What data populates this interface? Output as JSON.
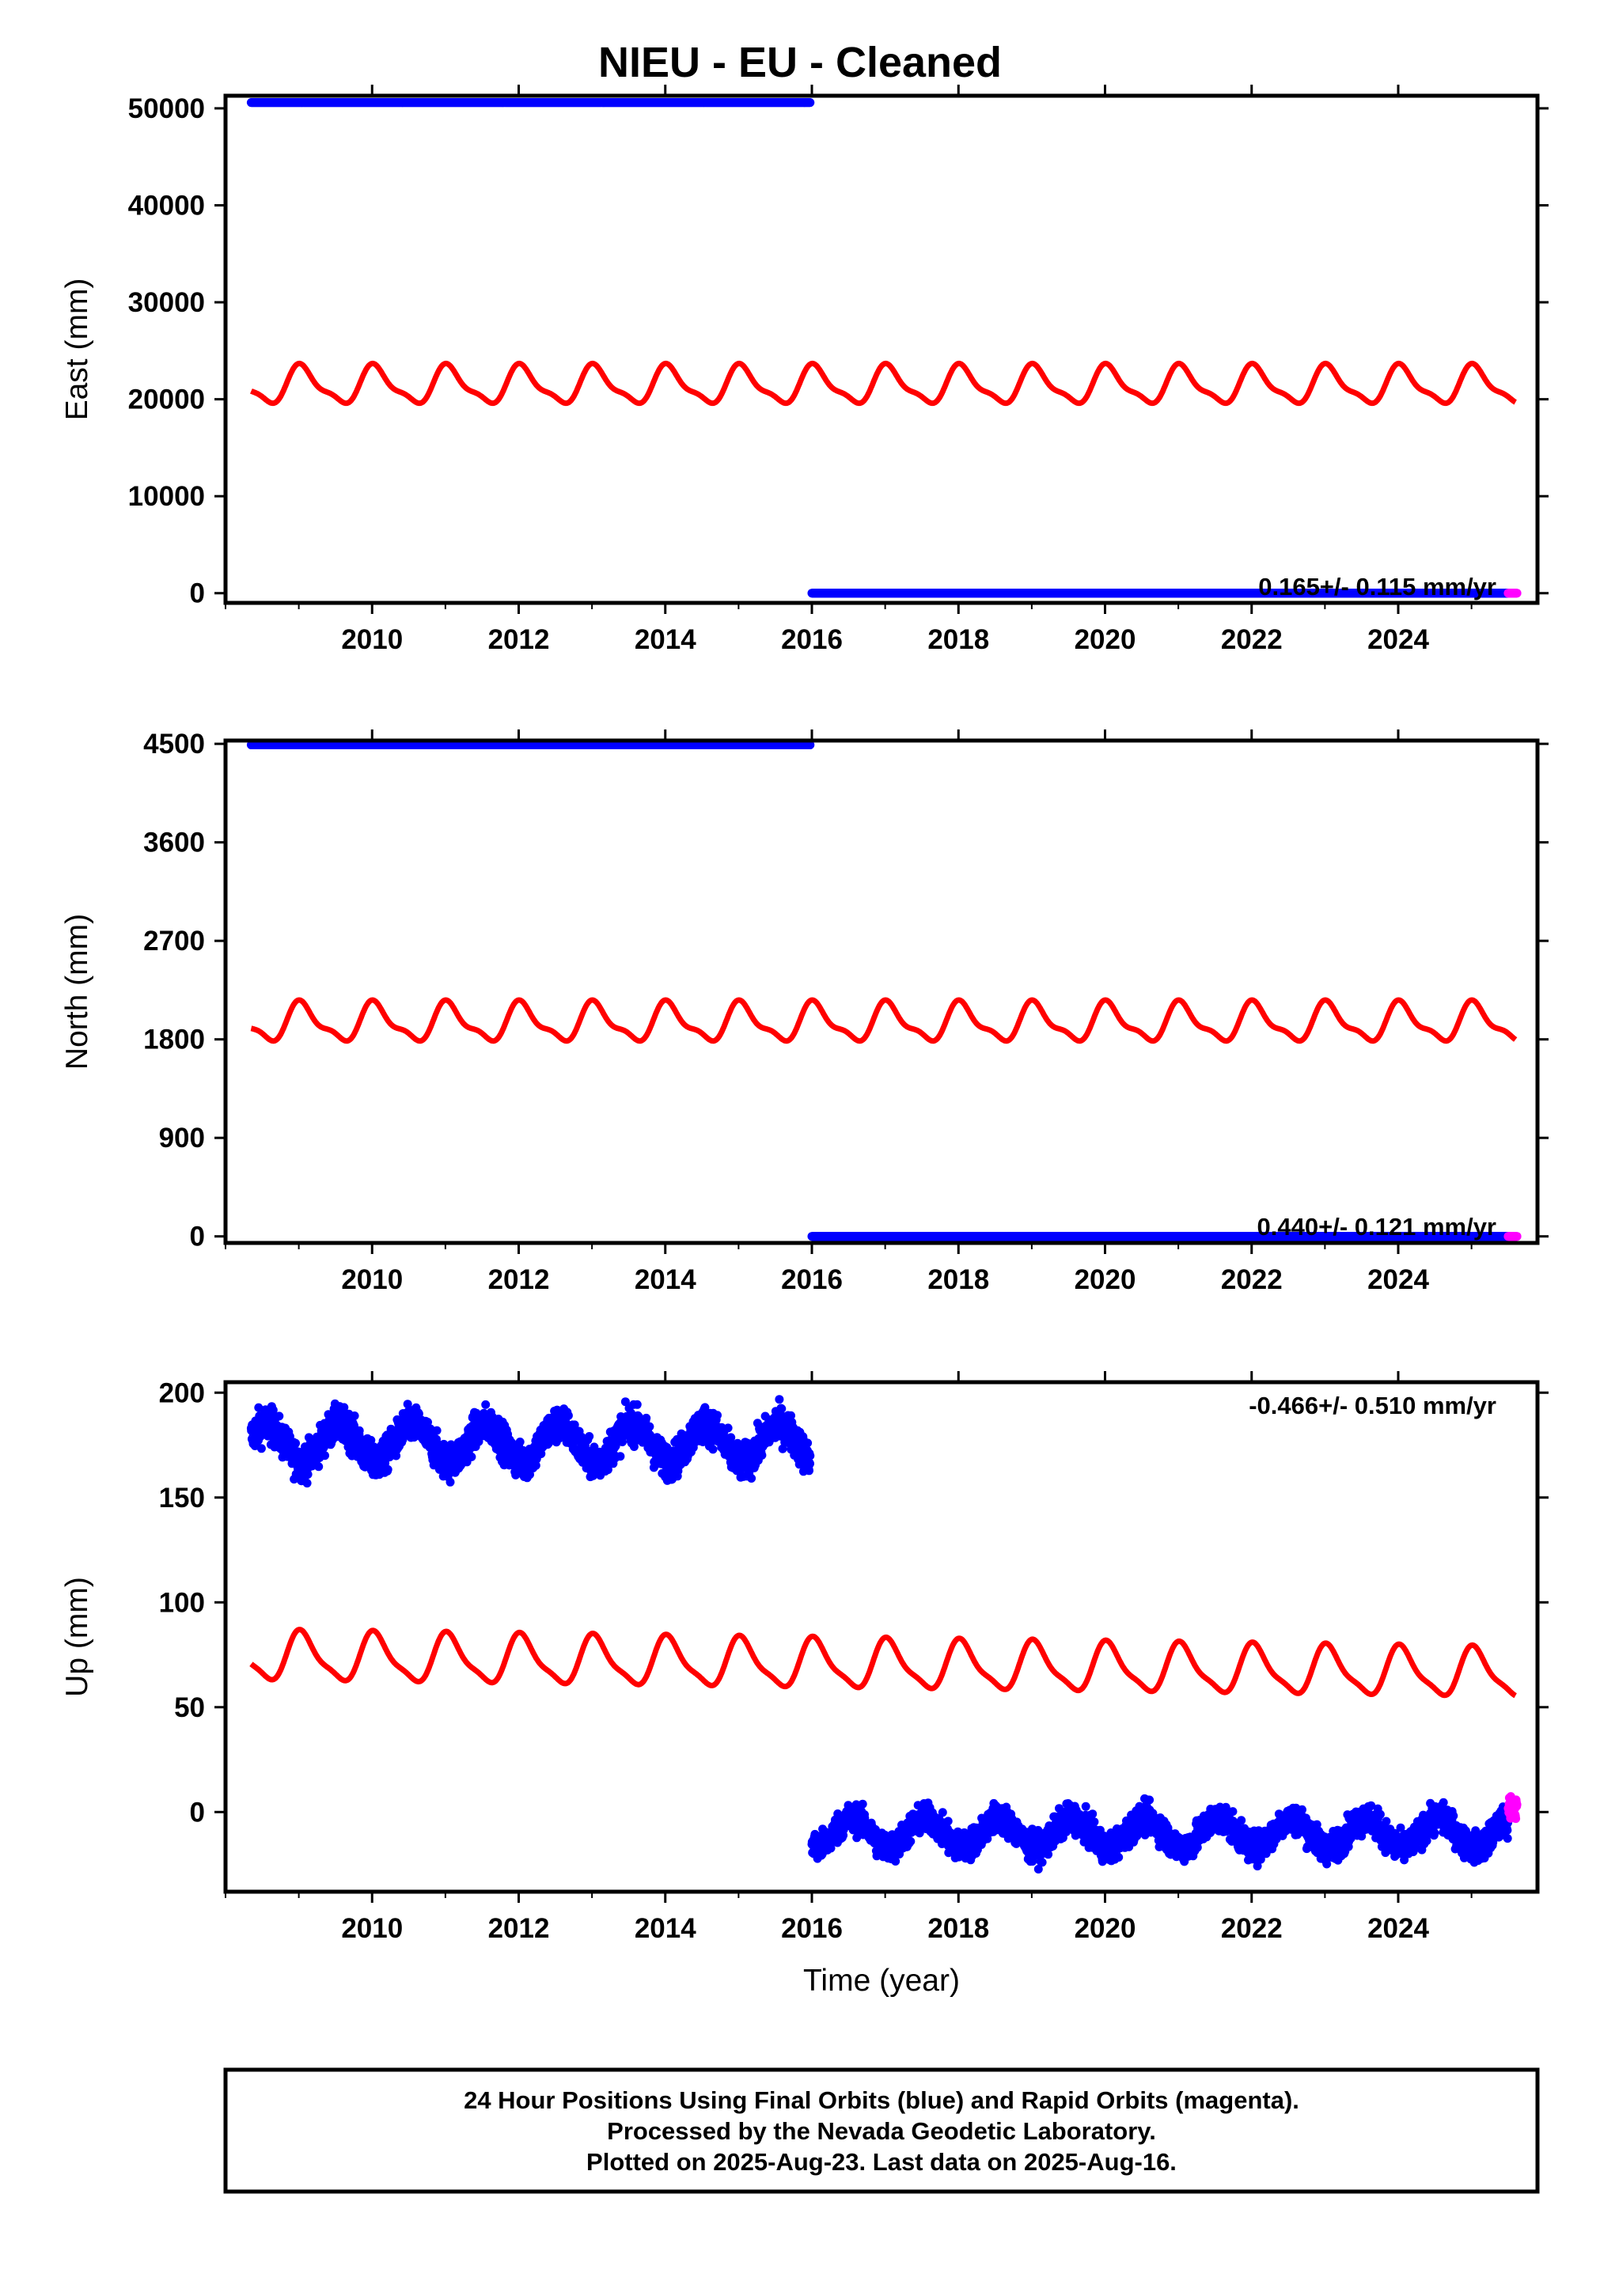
{
  "title": "NIEU  - EU - Cleaned",
  "colors": {
    "final_orbits": "#0000ff",
    "rapid_orbits": "#ff00ff",
    "model": "#ff0000",
    "frame": "#000000"
  },
  "footer": {
    "line1": "24 Hour Positions Using Final Orbits (blue) and Rapid Orbits (magenta).",
    "line2": "Processed by the Nevada Geodetic Laboratory.",
    "line3": "Plotted on 2025-Aug-23. Last data on 2025-Aug-16."
  },
  "chart_data": [
    {
      "type": "scatter",
      "panel": "east",
      "ylabel": "East (mm)",
      "xlabel": "",
      "rate_text": "0.165+/- 0.115 mm/yr",
      "xlim": [
        2008.0,
        2025.9
      ],
      "ylim": [
        -1000,
        51300
      ],
      "x_ticks": [
        2010,
        2012,
        2014,
        2016,
        2018,
        2020,
        2022,
        2024
      ],
      "y_ticks": [
        0,
        10000,
        20000,
        30000,
        40000,
        50000
      ],
      "grid": false,
      "series": [
        {
          "role": "final_orbits",
          "segments": [
            {
              "x_start": 2008.35,
              "x_end": 2015.98,
              "y": 50600,
              "noise": 0
            },
            {
              "x_start": 2016.0,
              "x_end": 2025.5,
              "y": 0,
              "noise": 0
            }
          ]
        },
        {
          "role": "rapid_orbits",
          "segments": [
            {
              "x_start": 2025.5,
              "x_end": 2025.62,
              "y": 0,
              "noise": 0
            }
          ]
        },
        {
          "role": "model",
          "x_start": 2008.35,
          "x_end": 2025.6,
          "model": {
            "base_y": 21400,
            "slope": 0,
            "annual_amp": 1800,
            "semi_amp": 600,
            "phase": 0.3
          }
        }
      ]
    },
    {
      "type": "scatter",
      "panel": "north",
      "ylabel": "North (mm)",
      "xlabel": "",
      "rate_text": "0.440+/- 0.121 mm/yr",
      "xlim": [
        2008.0,
        2025.9
      ],
      "ylim": [
        -60,
        4530
      ],
      "x_ticks": [
        2010,
        2012,
        2014,
        2016,
        2018,
        2020,
        2022,
        2024
      ],
      "y_ticks": [
        0,
        900,
        1800,
        2700,
        3600,
        4500
      ],
      "grid": false,
      "series": [
        {
          "role": "final_orbits",
          "segments": [
            {
              "x_start": 2008.35,
              "x_end": 2015.98,
              "y": 4490,
              "noise": 0
            },
            {
              "x_start": 2016.0,
              "x_end": 2025.5,
              "y": 0,
              "noise": 0
            }
          ]
        },
        {
          "role": "rapid_orbits",
          "segments": [
            {
              "x_start": 2025.5,
              "x_end": 2025.62,
              "y": 0,
              "noise": 0
            }
          ]
        },
        {
          "role": "model",
          "x_start": 2008.35,
          "x_end": 2025.6,
          "model": {
            "base_y": 1950,
            "slope": 0,
            "annual_amp": 160,
            "semi_amp": 60,
            "phase": 0.3
          }
        }
      ]
    },
    {
      "type": "scatter",
      "panel": "up",
      "ylabel": "Up (mm)",
      "xlabel": "Time (year)",
      "rate_text": "-0.466+/- 0.510 mm/yr",
      "xlim": [
        2008.0,
        2025.9
      ],
      "ylim": [
        -38,
        205
      ],
      "x_ticks": [
        2010,
        2012,
        2014,
        2016,
        2018,
        2020,
        2022,
        2024
      ],
      "y_ticks": [
        0,
        50,
        100,
        150,
        200
      ],
      "grid": false,
      "series": [
        {
          "role": "final_orbits",
          "segments": [
            {
              "x_start": 2008.35,
              "x_end": 2015.98,
              "y": 176,
              "noise": 6,
              "annual_amp": 9
            },
            {
              "x_start": 2016.0,
              "x_end": 2025.5,
              "y": -10,
              "noise": 5,
              "annual_amp": 7
            }
          ]
        },
        {
          "role": "rapid_orbits",
          "segments": [
            {
              "x_start": 2025.5,
              "x_end": 2025.62,
              "y": 2,
              "noise": 4,
              "annual_amp": 0
            }
          ]
        },
        {
          "role": "model",
          "x_start": 2008.35,
          "x_end": 2025.6,
          "model": {
            "base_y": 74,
            "slope": -0.466,
            "annual_amp": 11,
            "semi_amp": 3,
            "phase": 0.3
          }
        }
      ]
    }
  ]
}
